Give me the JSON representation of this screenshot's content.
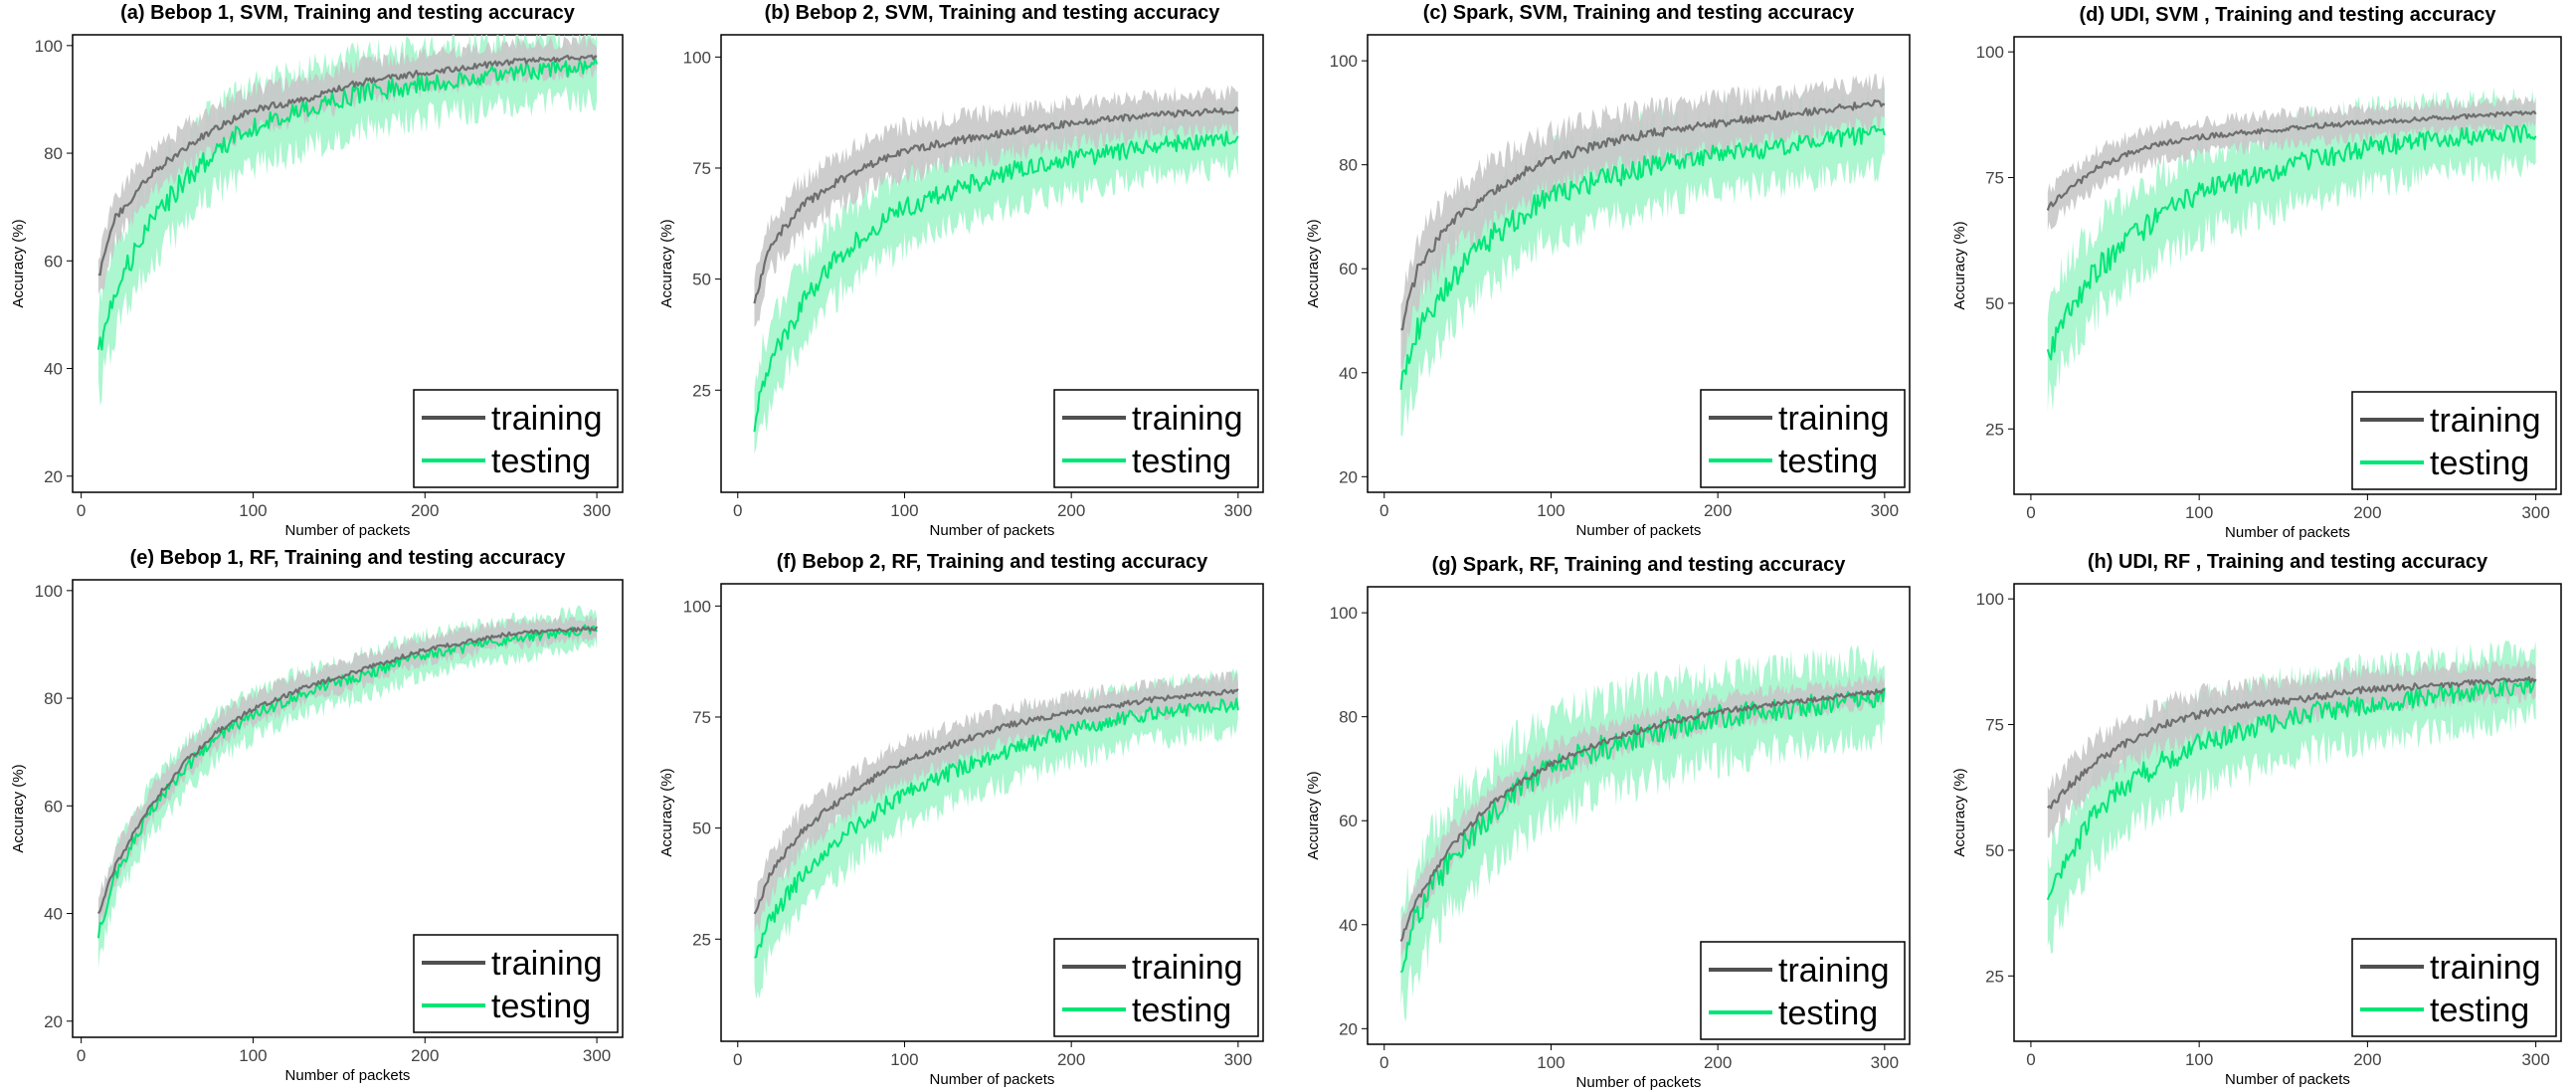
{
  "figure": {
    "colors": {
      "training_line": "#505050",
      "training_band": "#c8c8c8",
      "testing_line": "#00e676",
      "testing_band": "#9ef5c8",
      "frame": "#000000",
      "tick_text": "#444444"
    }
  },
  "chart_data": [
    {
      "id": "a",
      "type": "line",
      "title": "(a) Bebop 1, SVM, Training and testing accuracy",
      "xlabel": "Number of packets",
      "ylabel": "Accuracy (%)",
      "xlim": [
        -5,
        315
      ],
      "ylim": [
        17,
        102
      ],
      "xticks": [
        0,
        100,
        200,
        300
      ],
      "yticks": [
        20,
        40,
        60,
        80,
        100
      ],
      "legend": [
        "training",
        "testing"
      ],
      "legend_position": "bottom-right",
      "series": [
        {
          "name": "training",
          "x": [
            10,
            20,
            40,
            60,
            80,
            100,
            130,
            160,
            200,
            250,
            300
          ],
          "values": [
            57,
            68,
            76,
            81,
            85,
            88,
            90,
            93,
            95,
            97,
            98
          ],
          "band": 3.5
        },
        {
          "name": "testing",
          "x": [
            10,
            20,
            40,
            60,
            80,
            100,
            130,
            160,
            200,
            250,
            300
          ],
          "values": [
            43,
            55,
            67,
            75,
            81,
            85,
            88,
            91,
            93,
            95,
            96
          ],
          "band": 7
        }
      ]
    },
    {
      "id": "b",
      "type": "line",
      "title": "(b) Bebop 2, SVM, Training and testing accuracy",
      "xlabel": "Number of packets",
      "ylabel": "Accuracy (%)",
      "xlim": [
        -10,
        315
      ],
      "ylim": [
        2,
        105
      ],
      "xticks": [
        0,
        100,
        200,
        300
      ],
      "yticks": [
        25,
        50,
        75,
        100
      ],
      "legend": [
        "training",
        "testing"
      ],
      "legend_position": "bottom-right",
      "series": [
        {
          "name": "training",
          "x": [
            10,
            20,
            40,
            60,
            80,
            100,
            130,
            160,
            200,
            250,
            300
          ],
          "values": [
            45,
            58,
            67,
            72,
            76,
            79,
            81,
            83,
            85,
            87,
            88
          ],
          "band": 5
        },
        {
          "name": "testing",
          "x": [
            10,
            20,
            40,
            60,
            80,
            100,
            130,
            160,
            200,
            250,
            300
          ],
          "values": [
            18,
            32,
            45,
            55,
            61,
            66,
            70,
            74,
            77,
            80,
            82
          ],
          "band": 8
        }
      ]
    },
    {
      "id": "c",
      "type": "line",
      "title": "(c) Spark, SVM, Training and testing accuracy",
      "xlabel": "Number of packets",
      "ylabel": "Accuracy (%)",
      "xlim": [
        -10,
        315
      ],
      "ylim": [
        17,
        105
      ],
      "xticks": [
        0,
        100,
        200,
        300
      ],
      "yticks": [
        20,
        40,
        60,
        80,
        100
      ],
      "legend": [
        "training",
        "testing"
      ],
      "legend_position": "bottom-right",
      "series": [
        {
          "name": "training",
          "x": [
            10,
            20,
            40,
            60,
            80,
            100,
            130,
            160,
            200,
            250,
            300
          ],
          "values": [
            48,
            60,
            69,
            74,
            78,
            81,
            84,
            86,
            88,
            90,
            92
          ],
          "band": 5
        },
        {
          "name": "testing",
          "x": [
            10,
            20,
            40,
            60,
            80,
            100,
            130,
            160,
            200,
            250,
            300
          ],
          "values": [
            37,
            48,
            58,
            65,
            70,
            74,
            77,
            80,
            82,
            84,
            86
          ],
          "band": 8
        }
      ]
    },
    {
      "id": "d",
      "type": "line",
      "title": "(d) UDI, SVM , Training and testing accuracy",
      "xlabel": "Number of packets",
      "ylabel": "Accuracy (%)",
      "xlim": [
        -10,
        315
      ],
      "ylim": [
        12,
        103
      ],
      "xticks": [
        0,
        100,
        200,
        300
      ],
      "yticks": [
        25,
        50,
        75,
        100
      ],
      "legend": [
        "training",
        "testing"
      ],
      "legend_position": "bottom-right",
      "series": [
        {
          "name": "training",
          "x": [
            10,
            20,
            40,
            60,
            80,
            100,
            130,
            160,
            200,
            250,
            300
          ],
          "values": [
            69,
            72,
            77,
            80,
            82,
            83,
            84,
            85,
            86,
            87,
            88
          ],
          "band": 3
        },
        {
          "name": "testing",
          "x": [
            10,
            20,
            40,
            60,
            80,
            100,
            130,
            160,
            200,
            250,
            300
          ],
          "values": [
            39,
            48,
            57,
            63,
            68,
            72,
            75,
            78,
            81,
            83,
            84
          ],
          "band": 8
        }
      ]
    },
    {
      "id": "e",
      "type": "line",
      "title": "(e) Bebop 1, RF, Training and testing accuracy",
      "xlabel": "Number of packets",
      "ylabel": "Accuracy (%)",
      "xlim": [
        -5,
        315
      ],
      "ylim": [
        17,
        102
      ],
      "xticks": [
        0,
        100,
        200,
        300
      ],
      "yticks": [
        20,
        40,
        60,
        80,
        100
      ],
      "legend": [
        "training",
        "testing"
      ],
      "legend_position": "bottom-right",
      "series": [
        {
          "name": "training",
          "x": [
            10,
            20,
            40,
            60,
            80,
            100,
            130,
            160,
            200,
            250,
            300
          ],
          "values": [
            40,
            49,
            60,
            68,
            74,
            78,
            82,
            85,
            89,
            92,
            93
          ],
          "band": 2.5
        },
        {
          "name": "testing",
          "x": [
            10,
            20,
            40,
            60,
            80,
            100,
            130,
            160,
            200,
            250,
            300
          ],
          "values": [
            36,
            47,
            59,
            67,
            73,
            77,
            81,
            84,
            88,
            91,
            93
          ],
          "band": 4
        }
      ]
    },
    {
      "id": "f",
      "type": "line",
      "title": "(f) Bebop 2, RF, Training and testing accuracy",
      "xlabel": "Number of packets",
      "ylabel": "Accuracy (%)",
      "xlim": [
        -10,
        315
      ],
      "ylim": [
        2,
        105
      ],
      "xticks": [
        0,
        100,
        200,
        300
      ],
      "yticks": [
        25,
        50,
        75,
        100
      ],
      "legend": [
        "training",
        "testing"
      ],
      "legend_position": "bottom-right",
      "series": [
        {
          "name": "training",
          "x": [
            10,
            20,
            40,
            60,
            80,
            100,
            130,
            160,
            200,
            250,
            300
          ],
          "values": [
            30,
            40,
            50,
            56,
            61,
            65,
            69,
            73,
            76,
            79,
            81
          ],
          "band": 4
        },
        {
          "name": "testing",
          "x": [
            10,
            20,
            40,
            60,
            80,
            100,
            130,
            160,
            200,
            250,
            300
          ],
          "values": [
            20,
            30,
            40,
            47,
            53,
            58,
            63,
            67,
            72,
            76,
            78
          ],
          "band": 7
        }
      ]
    },
    {
      "id": "g",
      "type": "line",
      "title": "(g) Spark, RF, Training and testing accuracy",
      "xlabel": "Number of packets",
      "ylabel": "Accuracy (%)",
      "xlim": [
        -10,
        315
      ],
      "ylim": [
        17,
        105
      ],
      "xticks": [
        0,
        100,
        200,
        300
      ],
      "yticks": [
        20,
        40,
        60,
        80,
        100
      ],
      "legend": [
        "training",
        "testing"
      ],
      "legend_position": "bottom-right",
      "series": [
        {
          "name": "training",
          "x": [
            10,
            20,
            40,
            60,
            80,
            100,
            130,
            160,
            200,
            250,
            300
          ],
          "values": [
            37,
            45,
            55,
            62,
            67,
            71,
            75,
            78,
            81,
            83,
            85
          ],
          "band": 3
        },
        {
          "name": "testing",
          "x": [
            10,
            20,
            40,
            60,
            80,
            100,
            130,
            160,
            200,
            250,
            300
          ],
          "values": [
            33,
            42,
            53,
            60,
            66,
            70,
            74,
            77,
            80,
            82,
            84
          ],
          "band": 9
        }
      ]
    },
    {
      "id": "h",
      "type": "line",
      "title": "(h) UDI, RF , Training and testing accuracy",
      "xlabel": "Number of packets",
      "ylabel": "Accuracy (%)",
      "xlim": [
        -10,
        315
      ],
      "ylim": [
        12,
        103
      ],
      "xticks": [
        0,
        100,
        200,
        300
      ],
      "yticks": [
        25,
        50,
        75,
        100
      ],
      "legend": [
        "training",
        "testing"
      ],
      "legend_position": "bottom-right",
      "series": [
        {
          "name": "training",
          "x": [
            10,
            20,
            40,
            60,
            80,
            100,
            130,
            160,
            200,
            250,
            300
          ],
          "values": [
            58,
            62,
            68,
            72,
            75,
            77,
            79,
            80,
            82,
            83,
            84
          ],
          "band": 4
        },
        {
          "name": "testing",
          "x": [
            10,
            20,
            40,
            60,
            80,
            100,
            130,
            160,
            200,
            250,
            300
          ],
          "values": [
            40,
            48,
            58,
            64,
            68,
            71,
            74,
            77,
            79,
            81,
            83
          ],
          "band": 8
        }
      ]
    }
  ]
}
